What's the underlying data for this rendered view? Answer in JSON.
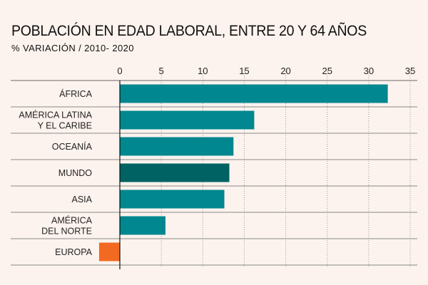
{
  "chart_data": {
    "type": "bar",
    "orientation": "horizontal",
    "title": "POBLACIÓN EN EDAD LABORAL, ENTRE 20 Y 64 AÑOS",
    "subtitle": "% VARIACIÓN / 2010- 2020",
    "xlim": [
      0,
      35
    ],
    "xticks": [
      0,
      5,
      10,
      15,
      20,
      25,
      30,
      35
    ],
    "categories": [
      [
        "ÁFRICA"
      ],
      [
        "AMÉRICA LATINA",
        "Y EL CARIBE"
      ],
      [
        "OCEANÍA"
      ],
      [
        "MUNDO"
      ],
      [
        "ASIA"
      ],
      [
        "AMÉRICA",
        "DEL NORTE"
      ],
      [
        "EUROPA"
      ]
    ],
    "values": [
      32.3,
      16.2,
      13.7,
      13.2,
      12.6,
      5.5,
      -2.5
    ],
    "colors": [
      "#00878f",
      "#00878f",
      "#00878f",
      "#006262",
      "#00878f",
      "#00878f",
      "#f26a21"
    ],
    "grid": true,
    "gridline_color": "#999999"
  }
}
